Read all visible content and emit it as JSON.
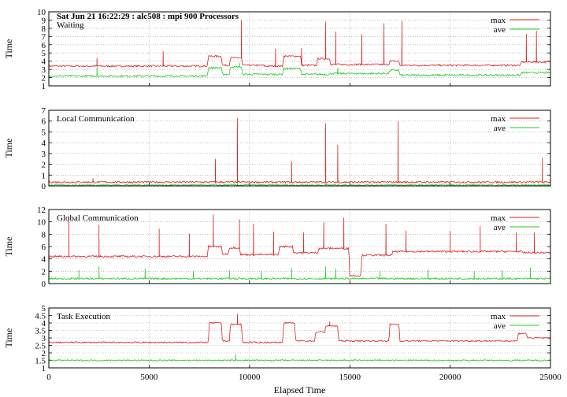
{
  "figure": {
    "header": "Sat Jun 21 16:22:29 : alc508 : mpi 900 Processors",
    "xlabel": "Elapsed Time"
  },
  "chart_data": [
    {
      "type": "line",
      "title": "Waiting",
      "ylabel": "Time",
      "xlim": [
        0,
        25000
      ],
      "ylim": [
        1,
        10
      ],
      "yticks": [
        1,
        2,
        3,
        4,
        5,
        6,
        7,
        8,
        9,
        10
      ],
      "xticks": [],
      "grid": true,
      "legend": "top-right",
      "series": [
        {
          "name": "max",
          "color": "#dd2222",
          "x": [
            0,
            7900,
            7950,
            8600,
            8650,
            9000,
            9050,
            9600,
            9650,
            10700,
            10750,
            11650,
            11700,
            12550,
            12600,
            13350,
            13400,
            14000,
            14050,
            14600,
            14650,
            16950,
            17000,
            17450,
            17500,
            23500,
            23550,
            25000
          ],
          "y": [
            3.4,
            3.4,
            4.6,
            4.6,
            3.5,
            3.5,
            4.4,
            4.4,
            3.5,
            3.5,
            3.4,
            3.4,
            4.6,
            4.6,
            3.5,
            3.5,
            4.3,
            4.3,
            3.6,
            3.6,
            3.6,
            3.6,
            4.0,
            4.0,
            3.5,
            3.5,
            3.9,
            3.9
          ],
          "spikes": [
            [
              2400,
              4.4
            ],
            [
              5700,
              5.2
            ],
            [
              9600,
              9.0
            ],
            [
              11300,
              5.5
            ],
            [
              12600,
              5.6
            ],
            [
              13800,
              8.8
            ],
            [
              14300,
              7.6
            ],
            [
              15600,
              7.3
            ],
            [
              16700,
              8.6
            ],
            [
              17600,
              8.9
            ],
            [
              23800,
              7.3
            ],
            [
              24300,
              7.7
            ]
          ]
        },
        {
          "name": "ave",
          "color": "#22cc22",
          "x": [
            0,
            7900,
            7950,
            8600,
            8650,
            9000,
            9050,
            9600,
            9650,
            11650,
            11700,
            12550,
            12600,
            14000,
            14050,
            16950,
            17000,
            17450,
            17500,
            23500,
            23550,
            25000
          ],
          "y": [
            2.2,
            2.2,
            3.2,
            3.2,
            2.4,
            2.4,
            3.3,
            3.3,
            2.4,
            2.4,
            3.1,
            3.1,
            2.4,
            2.4,
            2.5,
            2.5,
            2.9,
            2.9,
            2.3,
            2.3,
            2.6,
            2.6
          ],
          "spikes": [
            [
              2400,
              3.3
            ],
            [
              9500,
              3.8
            ],
            [
              14400,
              3.2
            ]
          ]
        }
      ]
    },
    {
      "type": "line",
      "title": "Local Communication",
      "ylabel": "Time",
      "xlim": [
        0,
        25000
      ],
      "ylim": [
        0,
        7
      ],
      "yticks": [
        0,
        1,
        2,
        3,
        4,
        5,
        6,
        7
      ],
      "xticks": [],
      "grid": true,
      "legend": "top-right",
      "series": [
        {
          "name": "max",
          "color": "#dd2222",
          "x": [
            0,
            25000
          ],
          "y": [
            0.35,
            0.35
          ],
          "spikes": [
            [
              2200,
              0.7
            ],
            [
              8300,
              2.5
            ],
            [
              9400,
              6.3
            ],
            [
              12100,
              2.3
            ],
            [
              13800,
              5.8
            ],
            [
              14400,
              3.8
            ],
            [
              17400,
              6.0
            ],
            [
              24600,
              2.6
            ]
          ]
        },
        {
          "name": "ave",
          "color": "#22cc22",
          "x": [
            0,
            25000
          ],
          "y": [
            0.08,
            0.08
          ],
          "spikes": [
            [
              9400,
              0.3
            ],
            [
              13800,
              0.25
            ]
          ]
        }
      ]
    },
    {
      "type": "line",
      "title": "Global Communication",
      "ylabel": "Time",
      "xlim": [
        0,
        25000
      ],
      "ylim": [
        0,
        12
      ],
      "yticks": [
        0,
        2,
        4,
        6,
        8,
        10,
        12
      ],
      "xticks": [],
      "grid": true,
      "legend": "top-right",
      "series": [
        {
          "name": "max",
          "color": "#dd2222",
          "x": [
            0,
            7900,
            7950,
            8600,
            8650,
            8950,
            9000,
            9500,
            9550,
            11450,
            11500,
            12150,
            12200,
            13400,
            13450,
            14950,
            15000,
            15550,
            15600,
            17100,
            17150,
            23550,
            23600,
            25000
          ],
          "y": [
            4.4,
            4.4,
            6.0,
            6.0,
            4.8,
            4.8,
            5.8,
            5.8,
            4.7,
            4.7,
            6.0,
            6.0,
            5.0,
            5.0,
            5.7,
            5.7,
            1.3,
            1.3,
            4.6,
            4.6,
            5.2,
            5.2,
            5.0,
            5.0
          ],
          "spikes": [
            [
              1000,
              10.9
            ],
            [
              2500,
              9.5
            ],
            [
              5500,
              8.9
            ],
            [
              7000,
              8.1
            ],
            [
              8200,
              11.2
            ],
            [
              9500,
              10.4
            ],
            [
              10200,
              9.7
            ],
            [
              11200,
              8.4
            ],
            [
              12700,
              8.3
            ],
            [
              13700,
              9.9
            ],
            [
              14700,
              10.7
            ],
            [
              16800,
              9.7
            ],
            [
              17800,
              8.6
            ],
            [
              20000,
              8.5
            ],
            [
              21500,
              9.3
            ],
            [
              23300,
              8.3
            ],
            [
              24200,
              8.3
            ]
          ]
        },
        {
          "name": "ave",
          "color": "#22cc22",
          "x": [
            0,
            25000
          ],
          "y": [
            0.8,
            0.8
          ],
          "spikes": [
            [
              1500,
              2.2
            ],
            [
              2500,
              2.8
            ],
            [
              4800,
              2.4
            ],
            [
              7200,
              2.0
            ],
            [
              9000,
              2.2
            ],
            [
              10600,
              2.1
            ],
            [
              12100,
              2.5
            ],
            [
              13800,
              2.8
            ],
            [
              14300,
              2.4
            ],
            [
              16500,
              2.1
            ],
            [
              18900,
              2.3
            ],
            [
              21200,
              2.0
            ],
            [
              22600,
              2.2
            ],
            [
              24000,
              2.6
            ]
          ]
        }
      ]
    },
    {
      "type": "line",
      "title": "Task Execution",
      "ylabel": "Time",
      "xlim": [
        0,
        25000
      ],
      "ylim": [
        1,
        5
      ],
      "yticks": [
        1,
        1.5,
        2,
        2.5,
        3,
        3.5,
        4,
        4.5,
        5
      ],
      "xticks": [
        0,
        5000,
        10000,
        15000,
        20000,
        25000
      ],
      "grid": true,
      "legend": "top-right",
      "series": [
        {
          "name": "max",
          "color": "#dd2222",
          "x": [
            0,
            7950,
            8000,
            8600,
            8650,
            9000,
            9050,
            9600,
            9650,
            11650,
            11700,
            12250,
            12300,
            13250,
            13300,
            13750,
            13800,
            14400,
            14450,
            16950,
            17000,
            17450,
            17500,
            23350,
            23400,
            23800,
            23850,
            25000
          ],
          "y": [
            2.7,
            2.7,
            4.0,
            4.0,
            2.8,
            2.8,
            3.9,
            3.9,
            2.7,
            2.7,
            4.0,
            4.0,
            2.8,
            2.8,
            3.4,
            3.4,
            3.8,
            3.8,
            2.8,
            2.8,
            3.9,
            3.9,
            2.8,
            2.8,
            3.3,
            3.3,
            3.0,
            3.0
          ],
          "spikes": [
            [
              9400,
              4.6
            ],
            [
              14000,
              4.1
            ]
          ]
        },
        {
          "name": "ave",
          "color": "#22cc22",
          "x": [
            0,
            25000
          ],
          "y": [
            1.5,
            1.5
          ],
          "spikes": [
            [
              9300,
              1.9
            ],
            [
              16500,
              1.6
            ]
          ]
        }
      ]
    }
  ]
}
